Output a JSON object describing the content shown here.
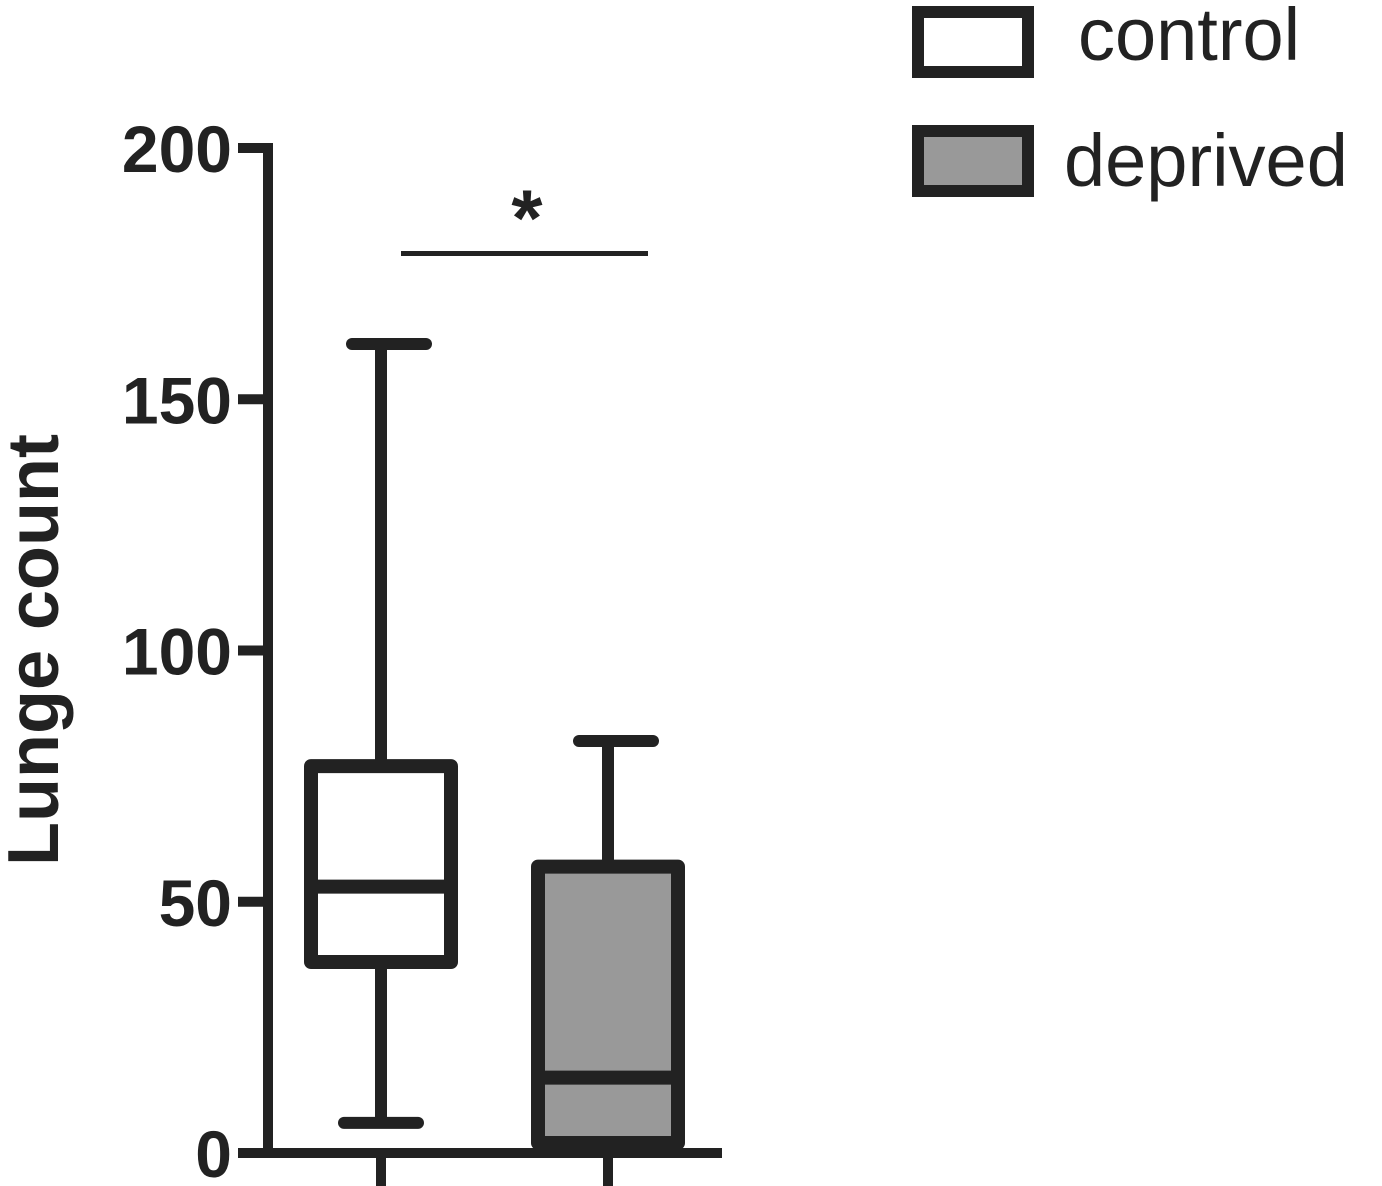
{
  "chart_data": {
    "type": "box",
    "ylabel": "Lunge count",
    "ylim": [
      0,
      200
    ],
    "yticks": [
      "0",
      "50",
      "100",
      "150",
      "200"
    ],
    "ytick_values": [
      0,
      50,
      100,
      150,
      200
    ],
    "series": [
      {
        "name": "control",
        "whisker_low": 6,
        "q1": 38,
        "median": 53,
        "q3": 77,
        "whisker_high": 161,
        "fill": "#ffffff"
      },
      {
        "name": "deprived",
        "whisker_low": 2,
        "q1": 2,
        "median": 15,
        "q3": 57,
        "whisker_high": 82,
        "fill": "#999999"
      }
    ],
    "significance": {
      "label": "*",
      "y": 179,
      "between": [
        "control",
        "deprived"
      ]
    },
    "legend": {
      "placement": "top-right",
      "entries": [
        "control",
        "deprived"
      ]
    },
    "grid": false
  },
  "colors": {
    "stroke": "#222222",
    "control_fill": "#ffffff",
    "deprived_fill": "#999999"
  }
}
